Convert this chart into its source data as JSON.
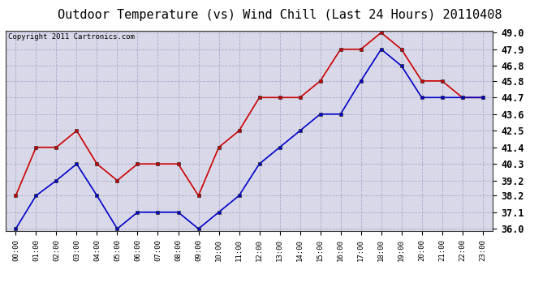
{
  "title": "Outdoor Temperature (vs) Wind Chill (Last 24 Hours) 20110408",
  "copyright": "Copyright 2011 Cartronics.com",
  "x_labels": [
    "00:00",
    "01:00",
    "02:00",
    "03:00",
    "04:00",
    "05:00",
    "06:00",
    "07:00",
    "08:00",
    "09:00",
    "10:00",
    "11:00",
    "12:00",
    "13:00",
    "14:00",
    "15:00",
    "16:00",
    "17:00",
    "18:00",
    "19:00",
    "20:00",
    "21:00",
    "22:00",
    "23:00"
  ],
  "temp_red": [
    38.2,
    41.4,
    41.4,
    42.5,
    40.3,
    39.2,
    40.3,
    40.3,
    40.3,
    38.2,
    41.4,
    42.5,
    44.7,
    44.7,
    44.7,
    45.8,
    47.9,
    47.9,
    49.0,
    47.9,
    45.8,
    45.8,
    44.7,
    44.7
  ],
  "temp_blue": [
    36.0,
    38.2,
    39.2,
    40.3,
    38.2,
    36.0,
    37.1,
    37.1,
    37.1,
    36.0,
    37.1,
    38.2,
    40.3,
    41.4,
    42.5,
    43.6,
    43.6,
    45.8,
    47.9,
    46.8,
    44.7,
    44.7,
    44.7,
    44.7
  ],
  "ylim": [
    36.0,
    49.0
  ],
  "yticks": [
    36.0,
    37.1,
    38.2,
    39.2,
    40.3,
    41.4,
    42.5,
    43.6,
    44.7,
    45.8,
    46.8,
    47.9,
    49.0
  ],
  "red_color": "#cc0000",
  "blue_color": "#0000cc",
  "outer_bg": "#ffffff",
  "plot_bg": "#d8d8e8",
  "grid_color": "#aaaacc",
  "title_fontsize": 11,
  "copyright_fontsize": 6.5,
  "ytick_fontsize": 8.5,
  "xtick_fontsize": 6.5
}
